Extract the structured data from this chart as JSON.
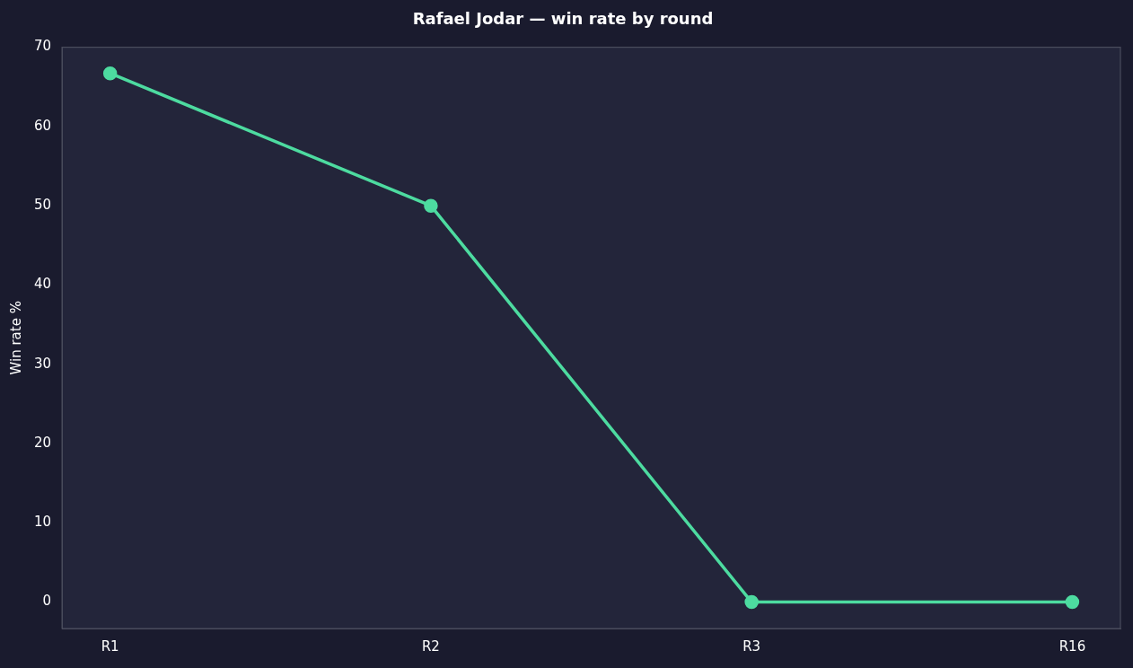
{
  "chart_data": {
    "type": "line",
    "title": "Rafael Jodar — win rate by round",
    "ylabel": "Win rate %",
    "categories": [
      "R1",
      "R2",
      "R3",
      "R16"
    ],
    "series": [
      {
        "color": "#4ddba0",
        "values": [
          66.7,
          50,
          0,
          0
        ]
      }
    ],
    "ylim": [
      -3.33,
      70
    ],
    "yticks": [
      0,
      10,
      20,
      30,
      40,
      50,
      60,
      70
    ],
    "grid": false,
    "legend": false,
    "marker": "circle",
    "line_style": "solid"
  }
}
